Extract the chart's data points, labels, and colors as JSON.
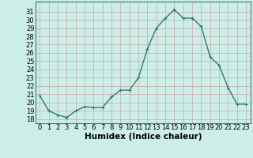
{
  "x": [
    0,
    1,
    2,
    3,
    4,
    5,
    6,
    7,
    8,
    9,
    10,
    11,
    12,
    13,
    14,
    15,
    16,
    17,
    18,
    19,
    20,
    21,
    22,
    23
  ],
  "y": [
    20.8,
    19.0,
    18.5,
    18.2,
    19.0,
    19.5,
    19.4,
    19.4,
    20.7,
    21.5,
    21.5,
    23.0,
    26.5,
    29.0,
    30.2,
    31.2,
    30.2,
    30.2,
    29.2,
    25.5,
    24.5,
    21.8,
    19.8,
    19.8
  ],
  "line_color": "#2e7d6e",
  "marker": "+",
  "marker_size": 3,
  "bg_color": "#cceee8",
  "grid_color": "#aaddcc",
  "xlabel": "Humidex (Indice chaleur)",
  "ylim": [
    17.5,
    32.2
  ],
  "xlim": [
    -0.5,
    23.5
  ],
  "yticks": [
    18,
    19,
    20,
    21,
    22,
    23,
    24,
    25,
    26,
    27,
    28,
    29,
    30,
    31
  ],
  "xticks": [
    0,
    1,
    2,
    3,
    4,
    5,
    6,
    7,
    8,
    9,
    10,
    11,
    12,
    13,
    14,
    15,
    16,
    17,
    18,
    19,
    20,
    21,
    22,
    23
  ],
  "xlabel_fontsize": 7.5,
  "tick_fontsize": 6,
  "line_width": 1.0
}
